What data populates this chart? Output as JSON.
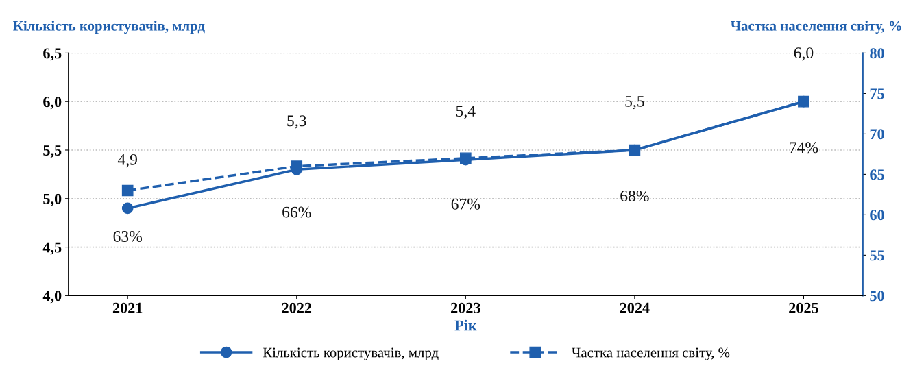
{
  "chart_data": {
    "type": "line",
    "xlabel": "Рік",
    "ylabel": "Кількість користувачів, млрд",
    "y2label": "Частка населення світу, %",
    "categories": [
      "2021",
      "2022",
      "2023",
      "2024",
      "2025"
    ],
    "series": [
      {
        "name": "Кількість користувачів, млрд",
        "color": "#1f5fae",
        "values": [
          4.9,
          5.3,
          5.4,
          5.5,
          6.0
        ],
        "value_labels": [
          "4,9",
          "5,3",
          "5,4",
          "5,5",
          "6,0"
        ],
        "marker": "circle",
        "line_style": "solid"
      },
      {
        "name": "Частка населення світу, %",
        "color": "#1f5fae",
        "values": [
          63,
          66,
          67,
          68,
          74
        ],
        "value_labels": [
          "63%",
          "66%",
          "67%",
          "68%",
          "74%"
        ],
        "axis": "y2",
        "marker": "square",
        "line_style": "dashed"
      }
    ],
    "ylim": [
      4.0,
      6.5
    ],
    "yticks": [
      {
        "value": 4.0,
        "label": "4,0"
      },
      {
        "value": 4.5,
        "label": "4,5"
      },
      {
        "value": 5.0,
        "label": "5,0"
      },
      {
        "value": 5.5,
        "label": "5,5"
      },
      {
        "value": 6.0,
        "label": "6,0"
      },
      {
        "value": 6.5,
        "label": "6,5"
      }
    ],
    "y2lim": [
      50,
      80
    ],
    "y2ticks": [
      50,
      55,
      60,
      65,
      70,
      75,
      80
    ],
    "grid": "y",
    "legend": "bottom"
  }
}
